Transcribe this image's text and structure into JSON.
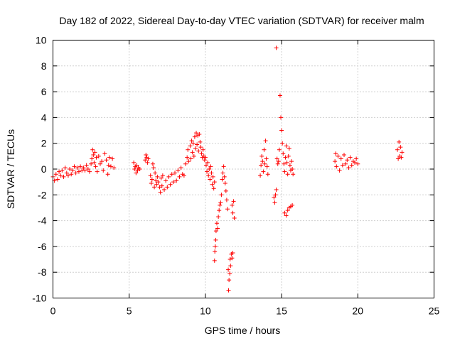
{
  "chart_data": {
    "type": "scatter",
    "title": "Day 182 of 2022, Sidereal Day-to-day VTEC variation (SDTVAR) for receiver malm",
    "xlabel": "GPS time / hours",
    "ylabel": "SDTVAR / TECUs",
    "xlim": [
      0,
      25
    ],
    "ylim": [
      -10,
      10
    ],
    "xticks": [
      0,
      5,
      10,
      15,
      20,
      25
    ],
    "yticks": [
      -10,
      -8,
      -6,
      -4,
      -2,
      0,
      2,
      4,
      6,
      8,
      10
    ],
    "grid": true,
    "marker": "+",
    "color": "#ff0000",
    "series": [
      {
        "name": "SDTVAR",
        "points": [
          [
            0.0,
            -0.6
          ],
          [
            0.1,
            -0.9
          ],
          [
            0.2,
            -0.4
          ],
          [
            0.3,
            -0.8
          ],
          [
            0.4,
            -0.2
          ],
          [
            0.5,
            -0.5
          ],
          [
            0.6,
            -0.1
          ],
          [
            0.7,
            -0.6
          ],
          [
            0.8,
            0.1
          ],
          [
            0.9,
            -0.3
          ],
          [
            1.0,
            -0.5
          ],
          [
            1.1,
            0.0
          ],
          [
            1.2,
            -0.4
          ],
          [
            1.3,
            -0.1
          ],
          [
            1.4,
            0.2
          ],
          [
            1.5,
            -0.3
          ],
          [
            1.6,
            0.1
          ],
          [
            1.7,
            -0.2
          ],
          [
            1.8,
            0.2
          ],
          [
            1.9,
            -0.1
          ],
          [
            2.0,
            0.1
          ],
          [
            2.1,
            -0.1
          ],
          [
            2.2,
            0.3
          ],
          [
            2.3,
            0.0
          ],
          [
            2.4,
            -0.2
          ],
          [
            2.5,
            0.4
          ],
          [
            2.55,
            0.8
          ],
          [
            2.6,
            1.5
          ],
          [
            2.65,
            1.1
          ],
          [
            2.7,
            0.5
          ],
          [
            2.75,
            1.3
          ],
          [
            2.8,
            0.2
          ],
          [
            2.85,
            0.9
          ],
          [
            2.9,
            -0.2
          ],
          [
            3.0,
            1.0
          ],
          [
            3.1,
            0.4
          ],
          [
            3.2,
            0.6
          ],
          [
            3.3,
            -0.1
          ],
          [
            3.4,
            1.2
          ],
          [
            3.5,
            0.7
          ],
          [
            3.6,
            -0.4
          ],
          [
            3.7,
            0.9
          ],
          [
            3.8,
            0.2
          ],
          [
            3.9,
            0.8
          ],
          [
            4.0,
            0.1
          ],
          [
            3.65,
            0.3
          ],
          [
            5.3,
            0.5
          ],
          [
            5.35,
            0.0
          ],
          [
            5.4,
            0.2
          ],
          [
            5.45,
            -0.3
          ],
          [
            5.5,
            0.3
          ],
          [
            5.55,
            -0.1
          ],
          [
            5.6,
            0.1
          ],
          [
            5.7,
            0.0
          ],
          [
            6.05,
            0.7
          ],
          [
            6.1,
            1.1
          ],
          [
            6.15,
            0.9
          ],
          [
            6.2,
            0.5
          ],
          [
            6.25,
            0.8
          ],
          [
            6.4,
            -0.5
          ],
          [
            6.45,
            -1.1
          ],
          [
            6.5,
            -0.8
          ],
          [
            6.55,
            0.4
          ],
          [
            6.6,
            0.1
          ],
          [
            6.65,
            -1.4
          ],
          [
            6.7,
            -0.3
          ],
          [
            6.75,
            -0.9
          ],
          [
            6.8,
            -1.2
          ],
          [
            6.85,
            -0.6
          ],
          [
            6.9,
            -1.0
          ],
          [
            7.0,
            -1.4
          ],
          [
            7.05,
            -1.8
          ],
          [
            7.1,
            -0.7
          ],
          [
            7.15,
            -1.3
          ],
          [
            7.2,
            -0.5
          ],
          [
            7.3,
            -1.6
          ],
          [
            7.4,
            -0.9
          ],
          [
            7.5,
            -1.4
          ],
          [
            7.6,
            -0.6
          ],
          [
            7.7,
            -1.2
          ],
          [
            7.8,
            -0.4
          ],
          [
            7.9,
            -1.0
          ],
          [
            8.0,
            -0.3
          ],
          [
            8.1,
            -0.9
          ],
          [
            8.2,
            -0.1
          ],
          [
            8.3,
            -0.6
          ],
          [
            8.4,
            0.1
          ],
          [
            8.5,
            -0.4
          ],
          [
            8.6,
            -0.5
          ],
          [
            8.7,
            0.4
          ],
          [
            8.8,
            0.9
          ],
          [
            8.85,
            1.5
          ],
          [
            8.9,
            0.6
          ],
          [
            9.0,
            1.8
          ],
          [
            9.05,
            0.8
          ],
          [
            9.1,
            2.2
          ],
          [
            9.15,
            1.3
          ],
          [
            9.2,
            2.0
          ],
          [
            9.25,
            1.0
          ],
          [
            9.3,
            2.5
          ],
          [
            9.35,
            1.6
          ],
          [
            9.4,
            2.8
          ],
          [
            9.45,
            1.9
          ],
          [
            9.5,
            2.6
          ],
          [
            9.55,
            1.4
          ],
          [
            9.6,
            2.7
          ],
          [
            9.65,
            2.1
          ],
          [
            9.7,
            1.7
          ],
          [
            9.75,
            1.2
          ],
          [
            9.8,
            0.9
          ],
          [
            9.85,
            1.5
          ],
          [
            9.9,
            1.0
          ],
          [
            9.95,
            0.7
          ],
          [
            10.0,
            0.9
          ],
          [
            10.05,
            0.3
          ],
          [
            10.1,
            -0.2
          ],
          [
            10.15,
            0.5
          ],
          [
            10.2,
            -0.5
          ],
          [
            10.25,
            0.0
          ],
          [
            10.3,
            -0.8
          ],
          [
            10.35,
            0.2
          ],
          [
            10.4,
            -0.3
          ],
          [
            10.45,
            -1.2
          ],
          [
            10.5,
            -0.6
          ],
          [
            10.55,
            -1.5
          ],
          [
            10.6,
            -1.0
          ],
          [
            10.6,
            -7.1
          ],
          [
            10.62,
            -6.4
          ],
          [
            10.65,
            -6.0
          ],
          [
            10.68,
            -5.5
          ],
          [
            10.7,
            -4.8
          ],
          [
            10.75,
            -4.2
          ],
          [
            10.8,
            -4.6
          ],
          [
            10.85,
            -3.7
          ],
          [
            10.9,
            -3.2
          ],
          [
            10.95,
            -2.8
          ],
          [
            11.0,
            -2.6
          ],
          [
            11.05,
            -2.0
          ],
          [
            11.1,
            -0.8
          ],
          [
            11.15,
            -0.3
          ],
          [
            11.2,
            0.2
          ],
          [
            11.25,
            -0.6
          ],
          [
            11.3,
            -1.1
          ],
          [
            11.35,
            -1.7
          ],
          [
            11.4,
            -2.4
          ],
          [
            11.45,
            -3.1
          ],
          [
            11.5,
            -7.8
          ],
          [
            11.52,
            -9.4
          ],
          [
            11.55,
            -8.6
          ],
          [
            11.6,
            -8.1
          ],
          [
            11.62,
            -7.0
          ],
          [
            11.65,
            -7.5
          ],
          [
            11.7,
            -6.6
          ],
          [
            11.75,
            -6.9
          ],
          [
            11.8,
            -6.5
          ],
          [
            11.75,
            -2.8
          ],
          [
            11.8,
            -3.4
          ],
          [
            11.85,
            -2.5
          ],
          [
            11.9,
            -3.8
          ],
          [
            13.6,
            -0.5
          ],
          [
            13.65,
            0.3
          ],
          [
            13.7,
            1.0
          ],
          [
            13.75,
            0.6
          ],
          [
            13.8,
            -0.2
          ],
          [
            13.85,
            1.5
          ],
          [
            13.9,
            0.4
          ],
          [
            13.95,
            2.2
          ],
          [
            14.0,
            0.8
          ],
          [
            14.05,
            0.2
          ],
          [
            14.1,
            -0.4
          ],
          [
            14.5,
            -2.2
          ],
          [
            14.55,
            -2.6
          ],
          [
            14.6,
            -2.0
          ],
          [
            14.65,
            -1.6
          ],
          [
            14.7,
            0.8
          ],
          [
            14.75,
            0.4
          ],
          [
            14.65,
            9.4
          ],
          [
            14.8,
            0.6
          ],
          [
            14.85,
            1.5
          ],
          [
            14.9,
            5.7
          ],
          [
            14.95,
            4.0
          ],
          [
            15.0,
            3.0
          ],
          [
            15.05,
            2.0
          ],
          [
            15.1,
            1.2
          ],
          [
            15.15,
            0.4
          ],
          [
            15.2,
            -0.2
          ],
          [
            15.25,
            0.9
          ],
          [
            15.3,
            1.8
          ],
          [
            15.35,
            0.5
          ],
          [
            15.4,
            -0.4
          ],
          [
            15.45,
            1.0
          ],
          [
            15.5,
            1.6
          ],
          [
            15.55,
            0.3
          ],
          [
            15.6,
            -0.1
          ],
          [
            15.65,
            0.6
          ],
          [
            15.7,
            0.0
          ],
          [
            15.75,
            -0.4
          ],
          [
            15.2,
            -3.4
          ],
          [
            15.3,
            -3.6
          ],
          [
            15.4,
            -3.2
          ],
          [
            15.5,
            -3.0
          ],
          [
            15.6,
            -2.9
          ],
          [
            15.7,
            -2.8
          ],
          [
            18.5,
            0.6
          ],
          [
            18.55,
            1.2
          ],
          [
            18.6,
            0.2
          ],
          [
            18.7,
            1.0
          ],
          [
            18.8,
            -0.1
          ],
          [
            18.9,
            0.8
          ],
          [
            19.0,
            0.3
          ],
          [
            19.1,
            1.1
          ],
          [
            19.2,
            0.4
          ],
          [
            19.3,
            0.7
          ],
          [
            19.4,
            0.1
          ],
          [
            19.5,
            0.9
          ],
          [
            19.6,
            0.3
          ],
          [
            19.7,
            0.6
          ],
          [
            19.8,
            0.5
          ],
          [
            19.9,
            0.8
          ],
          [
            20.0,
            0.4
          ],
          [
            22.6,
            1.5
          ],
          [
            22.65,
            0.8
          ],
          [
            22.7,
            2.1
          ],
          [
            22.75,
            1.0
          ],
          [
            22.8,
            1.7
          ],
          [
            22.85,
            0.9
          ],
          [
            22.9,
            1.3
          ]
        ]
      }
    ]
  }
}
